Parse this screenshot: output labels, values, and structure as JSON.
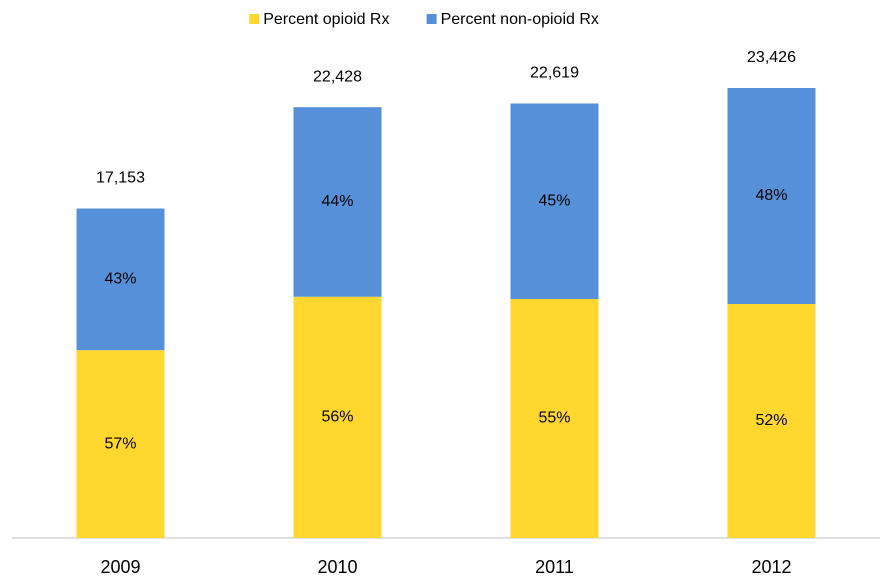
{
  "chart_data": {
    "type": "stacked-bar",
    "categories": [
      "2009",
      "2010",
      "2011",
      "2012"
    ],
    "series": [
      {
        "name": "Percent opioid Rx",
        "color": "#ffd72e",
        "values": [
          57,
          56,
          55,
          52
        ],
        "value_labels": [
          "57%",
          "56%",
          "55%",
          "52%"
        ]
      },
      {
        "name": "Percent non-opioid Rx",
        "color": "#5690d8",
        "values": [
          43,
          44,
          45,
          48
        ],
        "value_labels": [
          "43%",
          "44%",
          "45%",
          "48%"
        ]
      }
    ],
    "totals": {
      "values": [
        17153,
        22428,
        22619,
        23426
      ],
      "value_labels": [
        "17,153",
        "22,428",
        "22,619",
        "23,426"
      ]
    },
    "legend": "top"
  }
}
